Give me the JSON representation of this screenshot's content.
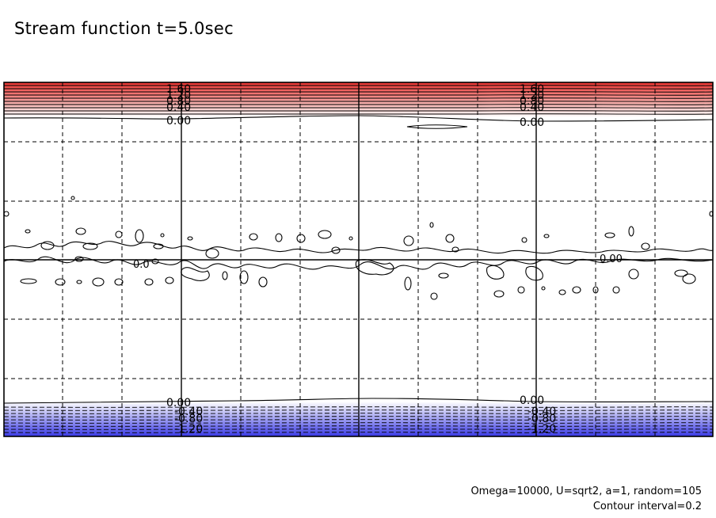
{
  "title": "Stream function t=5.0sec",
  "footer": {
    "params": "Omega=10000, U=sqrt2, a=1, random=105",
    "interval": "Contour interval=0.2"
  },
  "chart_data": {
    "type": "contour",
    "title": "Stream function t=5.0sec",
    "contour_interval": 0.2,
    "top_band_labels": [
      "1.60",
      "1.20",
      "0.80",
      "0.40",
      "0.00"
    ],
    "bottom_band_labels": [
      "0.00",
      "-0.40",
      "-0.80",
      "-1.20"
    ],
    "center_label": "0.00",
    "center_label_left": "0.0",
    "grid": true,
    "colors": {
      "positive": "#e8322f",
      "negative": "#3a3ae6",
      "zero_band": "#ffffff"
    }
  }
}
